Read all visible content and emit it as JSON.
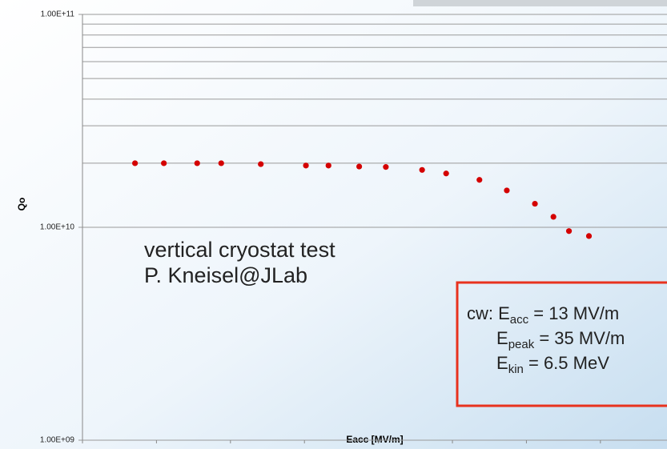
{
  "chart_data": {
    "type": "scatter",
    "y_label": "Qo",
    "x_label": "Eacc [MV/m]",
    "x": [
      1.42,
      2.2,
      3.1,
      3.75,
      4.82,
      6.04,
      6.65,
      7.48,
      8.2,
      9.18,
      9.83,
      10.73,
      11.47,
      12.23,
      12.73,
      13.15,
      13.69
    ],
    "series": [
      {
        "color": "#d40000",
        "values": [
          20000000000,
          20000000000,
          20000000000,
          20000000000,
          19800000000,
          19500000000,
          19500000000,
          19300000000,
          19200000000,
          18600000000,
          17900000000,
          16700000000,
          14900000000,
          12900000000,
          11200000000,
          9600000000,
          9100000000
        ]
      }
    ],
    "xlim": [
      0,
      15.8
    ],
    "xticks": [
      0,
      2,
      4,
      6,
      8,
      10,
      12,
      14
    ],
    "ylim": [
      1000000000,
      100000000000
    ],
    "log_y": true,
    "yticks": [
      {
        "value": 1000000000,
        "label": "1.00E+09"
      },
      {
        "value": 10000000000,
        "label": "1.00E+10"
      },
      {
        "value": 100000000000,
        "label": "1.00E+11"
      }
    ],
    "minor_gridlines": [
      20000000000,
      30000000000,
      40000000000,
      50000000000,
      60000000000,
      70000000000,
      80000000000,
      90000000000
    ],
    "annotations": [
      "vertical cryostat test",
      "P. Kneisel@JLab"
    ],
    "box_lines": [
      {
        "prefix": "cw: E",
        "sub": "acc",
        "text": " = 13 MV/m"
      },
      {
        "prefix": "E",
        "sub": "peak",
        "text": " = 35 MV/m"
      },
      {
        "prefix": "E",
        "sub": "kin",
        "text": " = 6.5 MeV"
      }
    ]
  }
}
